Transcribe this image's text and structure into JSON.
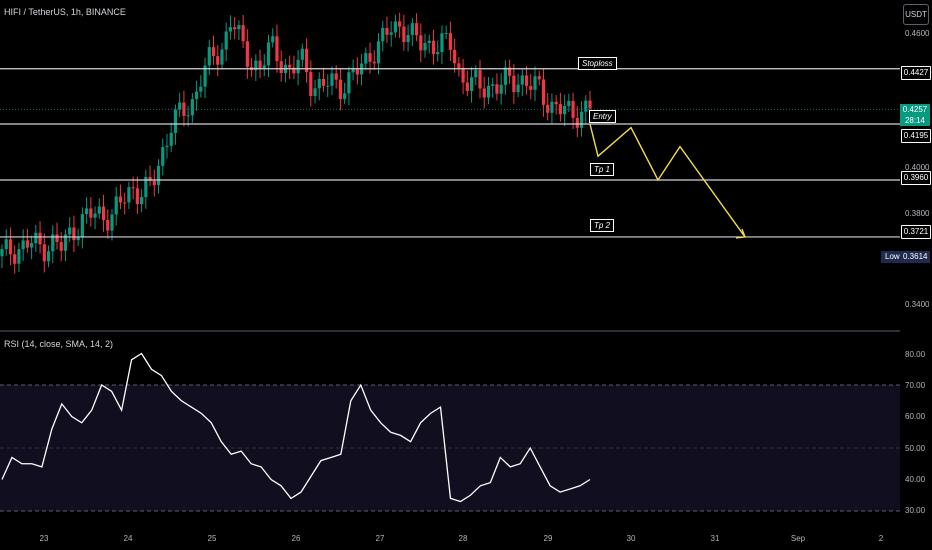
{
  "header": {
    "symbol_title": "HIFI / TetherUS, 1h, BINANCE"
  },
  "currency_button": {
    "label": "USDT"
  },
  "price_axis": {
    "ticks": [
      "0.4600",
      "0.4200",
      "0.4000",
      "0.3800",
      "0.3400"
    ],
    "labels": [
      "0.4427",
      "0.4195",
      "0.3960",
      "0.3721"
    ],
    "current_price": "0.4257",
    "countdown": "28:14",
    "low_label": "Low",
    "low_value": "0.3614"
  },
  "levels": {
    "stoploss": "Stoploss",
    "entry": "Entry",
    "tp1": "Tp 1",
    "tp2": "Tp 2"
  },
  "rsi_pane": {
    "title": "RSI (14, close, SMA, 14, 2)",
    "ticks": [
      "80.00",
      "70.00",
      "60.00",
      "50.00",
      "40.00",
      "30.00"
    ]
  },
  "time_axis": {
    "ticks": [
      "23",
      "24",
      "25",
      "26",
      "27",
      "28",
      "29",
      "30",
      "31",
      "Sep",
      "2"
    ]
  },
  "colors": {
    "up": "#089981",
    "down": "#f23645",
    "projection": "#f0dc4e",
    "rsi_line": "#ffffff",
    "background": "#000000"
  },
  "chart_data": {
    "type": "line",
    "series": [
      {
        "name": "HIFI / TetherUS, 1h, BINANCE",
        "x": [
          0,
          10,
          20,
          30,
          40,
          50,
          60,
          70,
          80,
          90,
          100,
          110,
          120,
          130,
          140,
          150,
          160,
          170,
          180,
          190,
          200,
          210,
          220,
          230,
          240,
          250,
          260,
          270,
          280,
          290,
          300,
          310,
          320,
          330,
          340,
          350,
          360,
          370,
          380,
          390,
          400,
          410,
          420,
          430,
          440,
          450,
          460,
          470,
          480,
          490,
          500,
          510,
          520,
          530,
          540,
          550,
          560,
          570,
          580,
          590
        ],
        "values": [
          0.364,
          0.367,
          0.368,
          0.369,
          0.368,
          0.37,
          0.367,
          0.375,
          0.379,
          0.381,
          0.382,
          0.381,
          0.386,
          0.393,
          0.391,
          0.392,
          0.407,
          0.42,
          0.423,
          0.428,
          0.44,
          0.446,
          0.451,
          0.464,
          0.452,
          0.446,
          0.443,
          0.452,
          0.447,
          0.44,
          0.447,
          0.438,
          0.434,
          0.437,
          0.436,
          0.438,
          0.443,
          0.45,
          0.453,
          0.459,
          0.462,
          0.456,
          0.453,
          0.454,
          0.452,
          0.453,
          0.44,
          0.436,
          0.435,
          0.436,
          0.435,
          0.438,
          0.439,
          0.435,
          0.434,
          0.428,
          0.425,
          0.424,
          0.425,
          0.426
        ]
      },
      {
        "name": "RSI (14, close, SMA, 14, 2)",
        "x": [
          0,
          10,
          20,
          30,
          40,
          50,
          60,
          70,
          80,
          90,
          100,
          110,
          120,
          130,
          140,
          150,
          160,
          170,
          180,
          190,
          200,
          210,
          220,
          230,
          240,
          250,
          260,
          270,
          280,
          290,
          300,
          310,
          320,
          330,
          340,
          350,
          360,
          370,
          380,
          390,
          400,
          410,
          420,
          430,
          440,
          450,
          460,
          470,
          480,
          490,
          500,
          510,
          520,
          530,
          540,
          550,
          560,
          570,
          580,
          590
        ],
        "values": [
          40,
          47,
          45,
          45,
          44,
          56,
          64,
          60,
          58,
          62,
          70,
          68,
          62,
          78,
          80,
          75,
          73,
          68,
          65,
          63,
          61,
          58,
          52,
          48,
          49,
          45,
          44,
          40,
          38,
          34,
          36,
          41,
          46,
          47,
          48,
          65,
          70,
          62,
          58,
          55,
          54,
          52,
          58,
          61,
          63,
          34,
          33,
          35,
          38,
          39,
          47,
          44,
          45,
          50,
          44,
          38,
          36,
          37,
          38,
          40
        ]
      }
    ],
    "ylim": [
      0.33,
      0.47
    ],
    "levels": {
      "stoploss": 0.4427,
      "entry": 0.4195,
      "tp1": 0.396,
      "tp2": 0.3721,
      "low": 0.3614,
      "current": 0.4257
    },
    "projection": [
      0.4195,
      0.406,
      0.418,
      0.396,
      0.41,
      0.3721
    ],
    "rsi_range": [
      28,
      84
    ],
    "rsi_band": [
      30,
      70
    ]
  }
}
